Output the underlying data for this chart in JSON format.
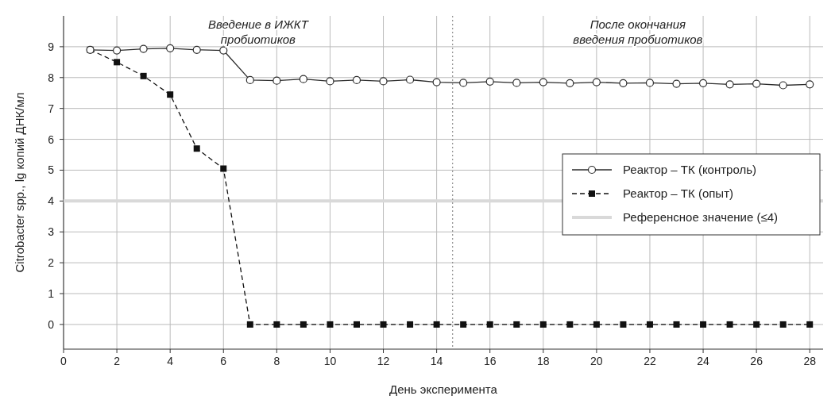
{
  "chart_data": {
    "type": "line",
    "xlabel": "День эксперимента",
    "ylabel": "Citrobacter spp., lg копий ДНК/мл",
    "x": [
      1,
      2,
      3,
      4,
      5,
      6,
      7,
      8,
      9,
      10,
      11,
      12,
      13,
      14,
      15,
      16,
      17,
      18,
      19,
      20,
      21,
      22,
      23,
      24,
      25,
      26,
      27,
      28
    ],
    "series": [
      {
        "name": "Реактор – ТК (контроль)",
        "color": "#2b2b2b",
        "marker": "circle",
        "line_style": "solid",
        "values": [
          8.9,
          8.88,
          8.93,
          8.95,
          8.9,
          8.88,
          7.92,
          7.9,
          7.95,
          7.88,
          7.92,
          7.88,
          7.93,
          7.85,
          7.83,
          7.87,
          7.83,
          7.85,
          7.82,
          7.85,
          7.82,
          7.83,
          7.8,
          7.82,
          7.78,
          7.8,
          7.75,
          7.78
        ]
      },
      {
        "name": "Реактор – ТК (опыт)",
        "color": "#111111",
        "marker": "square",
        "line_style": "dashed",
        "values": [
          8.9,
          8.5,
          8.05,
          7.45,
          5.7,
          5.05,
          0,
          0,
          0,
          0,
          0,
          0,
          0,
          0,
          0,
          0,
          0,
          0,
          0,
          0,
          0,
          0,
          0,
          0,
          0,
          0,
          0,
          0
        ]
      }
    ],
    "ref_lines": [
      {
        "axis": "y",
        "value": 4,
        "label": "Референсное значение (≤4)",
        "color": "#d9d9d9",
        "line_style": "solid"
      },
      {
        "axis": "x",
        "value": 14.6,
        "color": "#777777",
        "line_style": "dotted"
      }
    ],
    "annotations": [
      "Введение в ИЖКТ пробиотиков",
      "После окончания введения пробиотиков"
    ],
    "xlim": [
      0,
      28.5
    ],
    "ylim": [
      -0.8,
      10
    ],
    "xticks": [
      0,
      2,
      4,
      6,
      8,
      10,
      12,
      14,
      16,
      18,
      20,
      22,
      24,
      26,
      28
    ],
    "yticks": [
      0,
      1,
      2,
      3,
      4,
      5,
      6,
      7,
      8,
      9
    ],
    "grid": true,
    "legend": "right"
  }
}
